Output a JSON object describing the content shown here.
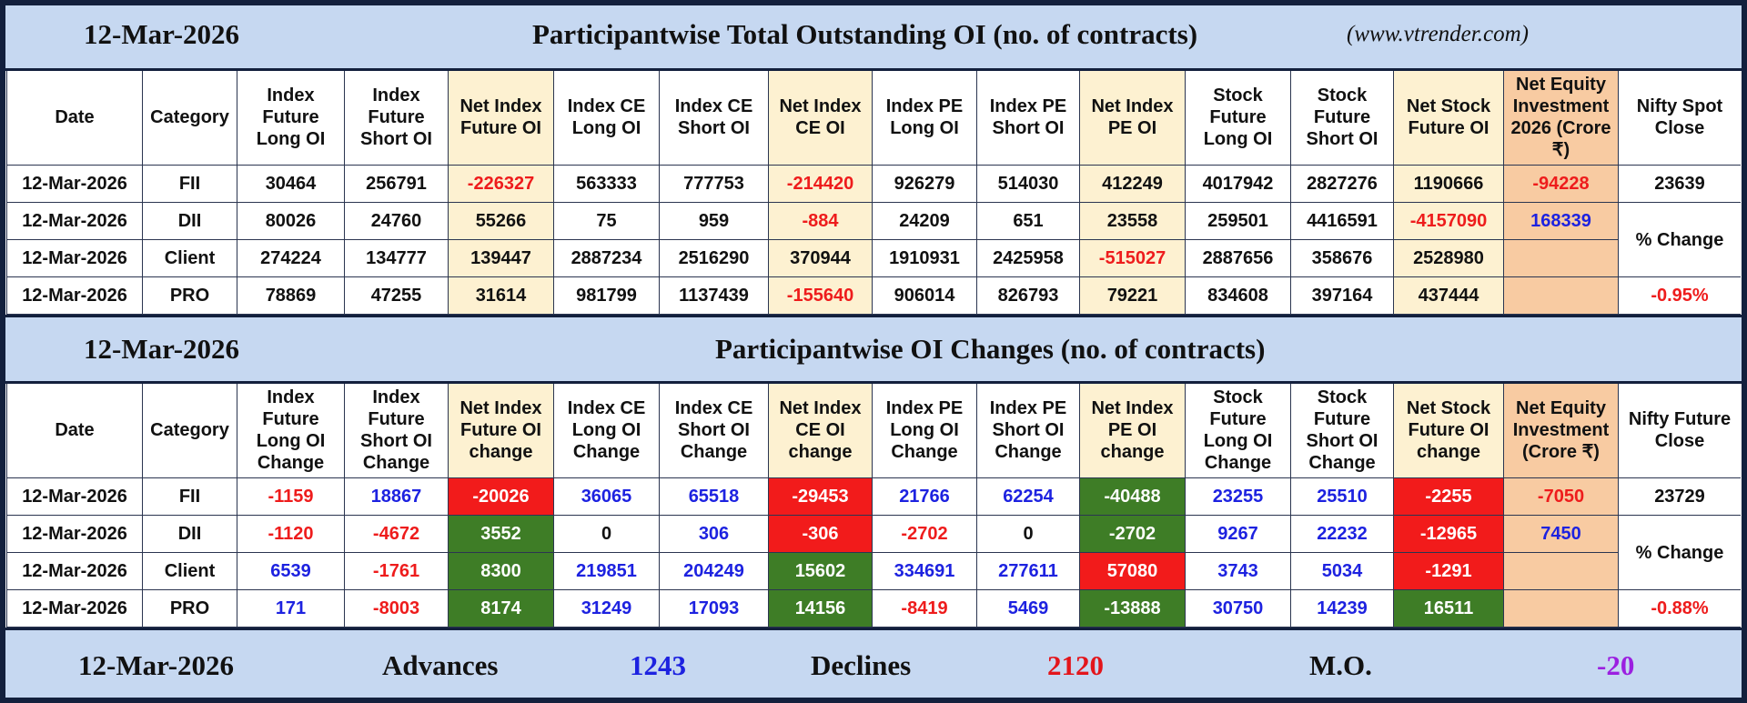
{
  "sections": [
    {
      "date": "12-Mar-2026",
      "title": "Participantwise Total Outstanding OI (no. of contracts)",
      "source": "(www.vtrender.com)",
      "headers": [
        "Date",
        "Category",
        "Index Future Long OI",
        "Index Future Short OI",
        "Net Index Future OI",
        "Index CE Long OI",
        "Index CE Short OI",
        "Net Index CE OI",
        "Index PE Long OI",
        "Index PE Short OI",
        "Net Index PE OI",
        "Stock Future Long OI",
        "Stock Future Short OI",
        "Net Stock Future OI",
        "Net Equity Investment 2026 (Crore ₹)",
        "Nifty Spot Close"
      ],
      "rows": [
        [
          "12-Mar-2026",
          "FII",
          30464,
          256791,
          -226327,
          563333,
          777753,
          -214420,
          926279,
          514030,
          412249,
          4017942,
          2827276,
          1190666
        ],
        [
          "12-Mar-2026",
          "DII",
          80026,
          24760,
          55266,
          75,
          959,
          -884,
          24209,
          651,
          23558,
          259501,
          4416591,
          -4157090
        ],
        [
          "12-Mar-2026",
          "Client",
          274224,
          134777,
          139447,
          2887234,
          2516290,
          370944,
          1910931,
          2425958,
          -515027,
          2887656,
          358676,
          2528980
        ],
        [
          "12-Mar-2026",
          "PRO",
          78869,
          47255,
          31614,
          981799,
          1137439,
          -155640,
          906014,
          826793,
          79221,
          834608,
          397164,
          437444
        ]
      ],
      "net_equity": [
        -94228,
        168339
      ],
      "close": 23639,
      "change_label": "% Change",
      "change": "-0.95%"
    },
    {
      "date": "12-Mar-2026",
      "title": "Participantwise OI Changes (no. of contracts)",
      "headers": [
        "Date",
        "Category",
        "Index Future Long OI Change",
        "Index Future Short OI Change",
        "Net Index Future OI change",
        "Index CE Long OI Change",
        "Index CE Short OI Change",
        "Net Index CE OI change",
        "Index PE Long OI Change",
        "Index PE Short OI Change",
        "Net Index PE OI change",
        "Stock Future Long OI Change",
        "Stock Future Short OI Change",
        "Net Stock Future OI change",
        "Net Equity Investment (Crore ₹)",
        "Nifty Future Close"
      ],
      "rows": [
        [
          "12-Mar-2026",
          "FII",
          -1159,
          18867,
          -20026,
          36065,
          65518,
          -29453,
          21766,
          62254,
          -40488,
          23255,
          25510,
          -2255
        ],
        [
          "12-Mar-2026",
          "DII",
          -1120,
          -4672,
          3552,
          0,
          306,
          -306,
          -2702,
          0,
          -2702,
          9267,
          22232,
          -12965
        ],
        [
          "12-Mar-2026",
          "Client",
          6539,
          -1761,
          8300,
          219851,
          204249,
          15602,
          334691,
          277611,
          57080,
          3743,
          5034,
          -1291
        ],
        [
          "12-Mar-2026",
          "PRO",
          171,
          -8003,
          8174,
          31249,
          17093,
          14156,
          -8419,
          5469,
          -13888,
          30750,
          14239,
          16511
        ]
      ],
      "net_equity": [
        -7050,
        7450
      ],
      "close": 23729,
      "change_label": "% Change",
      "change": "-0.88%"
    }
  ],
  "summary": {
    "date": "12-Mar-2026",
    "advances_label": "Advances",
    "advances": 1243,
    "declines_label": "Declines",
    "declines": 2120,
    "mo_label": "M.O.",
    "mo": -20
  }
}
